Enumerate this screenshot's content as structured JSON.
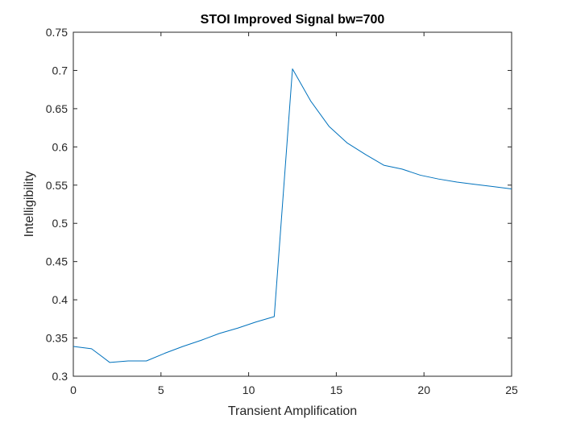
{
  "chart_data": {
    "type": "line",
    "title": "STOI Improved Signal bw=700",
    "xlabel": "Transient Amplification",
    "ylabel": "Intelligibility",
    "xlim": [
      0,
      25
    ],
    "ylim": [
      0.3,
      0.75
    ],
    "xticks": [
      0,
      5,
      10,
      15,
      20,
      25
    ],
    "yticks": [
      0.3,
      0.35,
      0.4,
      0.45,
      0.5,
      0.55,
      0.6,
      0.65,
      0.7,
      0.75
    ],
    "xtick_labels": [
      "0",
      "5",
      "10",
      "15",
      "20",
      "25"
    ],
    "ytick_labels": [
      "0.3",
      "0.35",
      "0.4",
      "0.45",
      "0.5",
      "0.55",
      "0.6",
      "0.65",
      "0.7",
      "0.75"
    ],
    "grid": false,
    "series": [
      {
        "color": "#0072bd",
        "x": [
          0,
          1.04,
          2.08,
          3.13,
          4.17,
          5.21,
          6.25,
          7.29,
          8.33,
          9.38,
          10.42,
          11.46,
          12.5,
          13.54,
          14.58,
          15.63,
          16.67,
          17.71,
          18.75,
          19.79,
          20.83,
          21.88,
          22.92,
          23.96,
          25
        ],
        "y": [
          0.339,
          0.336,
          0.318,
          0.32,
          0.32,
          0.33,
          0.339,
          0.347,
          0.356,
          0.363,
          0.371,
          0.378,
          0.702,
          0.66,
          0.627,
          0.605,
          0.59,
          0.576,
          0.571,
          0.563,
          0.558,
          0.554,
          0.551,
          0.548,
          0.545
        ]
      }
    ]
  }
}
